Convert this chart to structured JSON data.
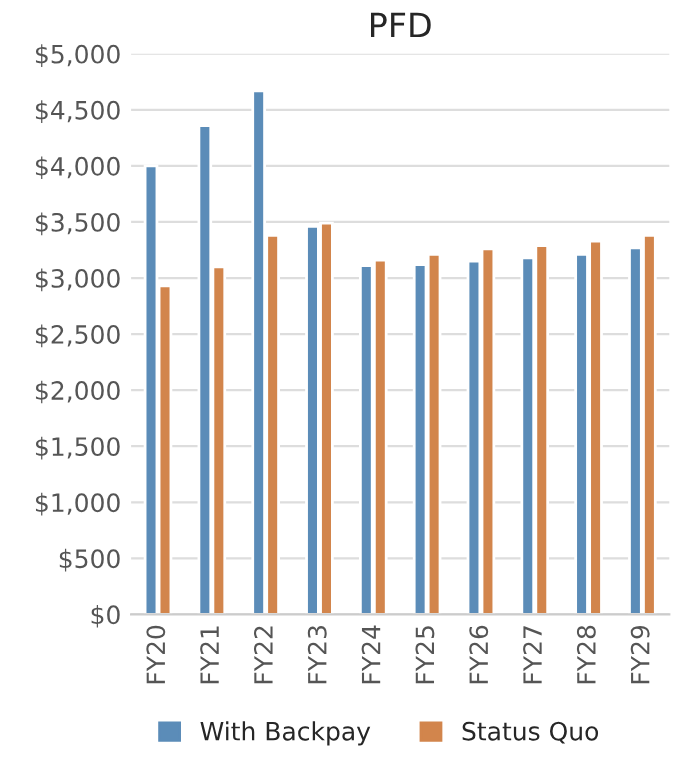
{
  "chart_data": {
    "type": "bar",
    "title": "PFD",
    "categories": [
      "FY20",
      "FY21",
      "FY22",
      "FY23",
      "FY24",
      "FY25",
      "FY26",
      "FY27",
      "FY28",
      "FY29"
    ],
    "series": [
      {
        "name": "With Backpay",
        "color": "#5b8cb8",
        "values": [
          4000,
          4360,
          4670,
          3460,
          3110,
          3120,
          3150,
          3180,
          3210,
          3270
        ]
      },
      {
        "name": "Status Quo",
        "color": "#d2854c",
        "values": [
          2930,
          3100,
          3380,
          3490,
          3160,
          3210,
          3260,
          3290,
          3330,
          3380
        ]
      }
    ],
    "ylim": [
      0,
      5000
    ],
    "yticks": [
      {
        "value": 0,
        "label": "$0"
      },
      {
        "value": 500,
        "label": "$500"
      },
      {
        "value": 1000,
        "label": "$1,000"
      },
      {
        "value": 1500,
        "label": "$1,500"
      },
      {
        "value": 2000,
        "label": "$2,000"
      },
      {
        "value": 2500,
        "label": "$2,500"
      },
      {
        "value": 3000,
        "label": "$3,000"
      },
      {
        "value": 3500,
        "label": "$3,500"
      },
      {
        "value": 4000,
        "label": "$4,000"
      },
      {
        "value": 4500,
        "label": "$4,500"
      },
      {
        "value": 5000,
        "label": "$5,000"
      }
    ],
    "grid": "y",
    "legend": "bottom"
  }
}
